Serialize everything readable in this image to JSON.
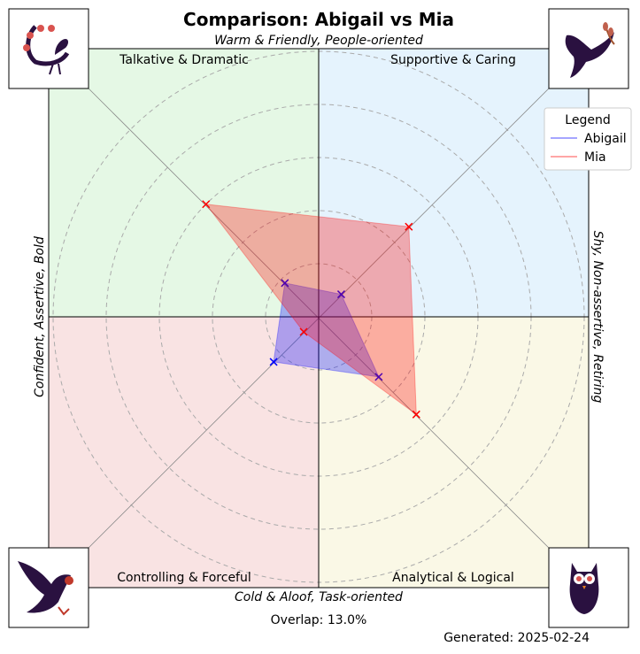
{
  "chart_data": {
    "type": "radar",
    "title": "Comparison: Abigail vs Mia",
    "axis_labels": {
      "top": "Warm & Friendly, People-oriented",
      "bottom": "Cold & Aloof, Task-oriented",
      "left": "Confident, Assertive, Bold",
      "right": "Shy, Non-assertive, Retiring"
    },
    "quadrants": [
      {
        "name": "Talkative & Dramatic",
        "position": "top-left",
        "color": "#e5f8e5",
        "icon": "peacock-icon"
      },
      {
        "name": "Supportive & Caring",
        "position": "top-right",
        "color": "#e5f3fd",
        "icon": "dove-icon"
      },
      {
        "name": "Controlling & Forceful",
        "position": "bottom-left",
        "color": "#f9e3e3",
        "icon": "eagle-icon"
      },
      {
        "name": "Analytical & Logical",
        "position": "bottom-right",
        "color": "#faf8e6",
        "icon": "owl-icon"
      }
    ],
    "axes_order": [
      "Supportive & Caring",
      "Talkative & Dramatic",
      "Controlling & Forceful",
      "Analytical & Logical"
    ],
    "rlim": [
      0,
      5
    ],
    "grid": true,
    "series": [
      {
        "name": "Abigail",
        "color": "#0000ff",
        "values": [
          0.6,
          0.9,
          1.2,
          1.6
        ]
      },
      {
        "name": "Mia",
        "color": "#ff0000",
        "values": [
          2.4,
          3.0,
          0.4,
          2.6
        ]
      }
    ],
    "legend": {
      "title": "Legend",
      "placement": "top-right"
    },
    "overlap_text": "Overlap: 13.0%",
    "generated_text": "Generated: 2025-02-24"
  }
}
